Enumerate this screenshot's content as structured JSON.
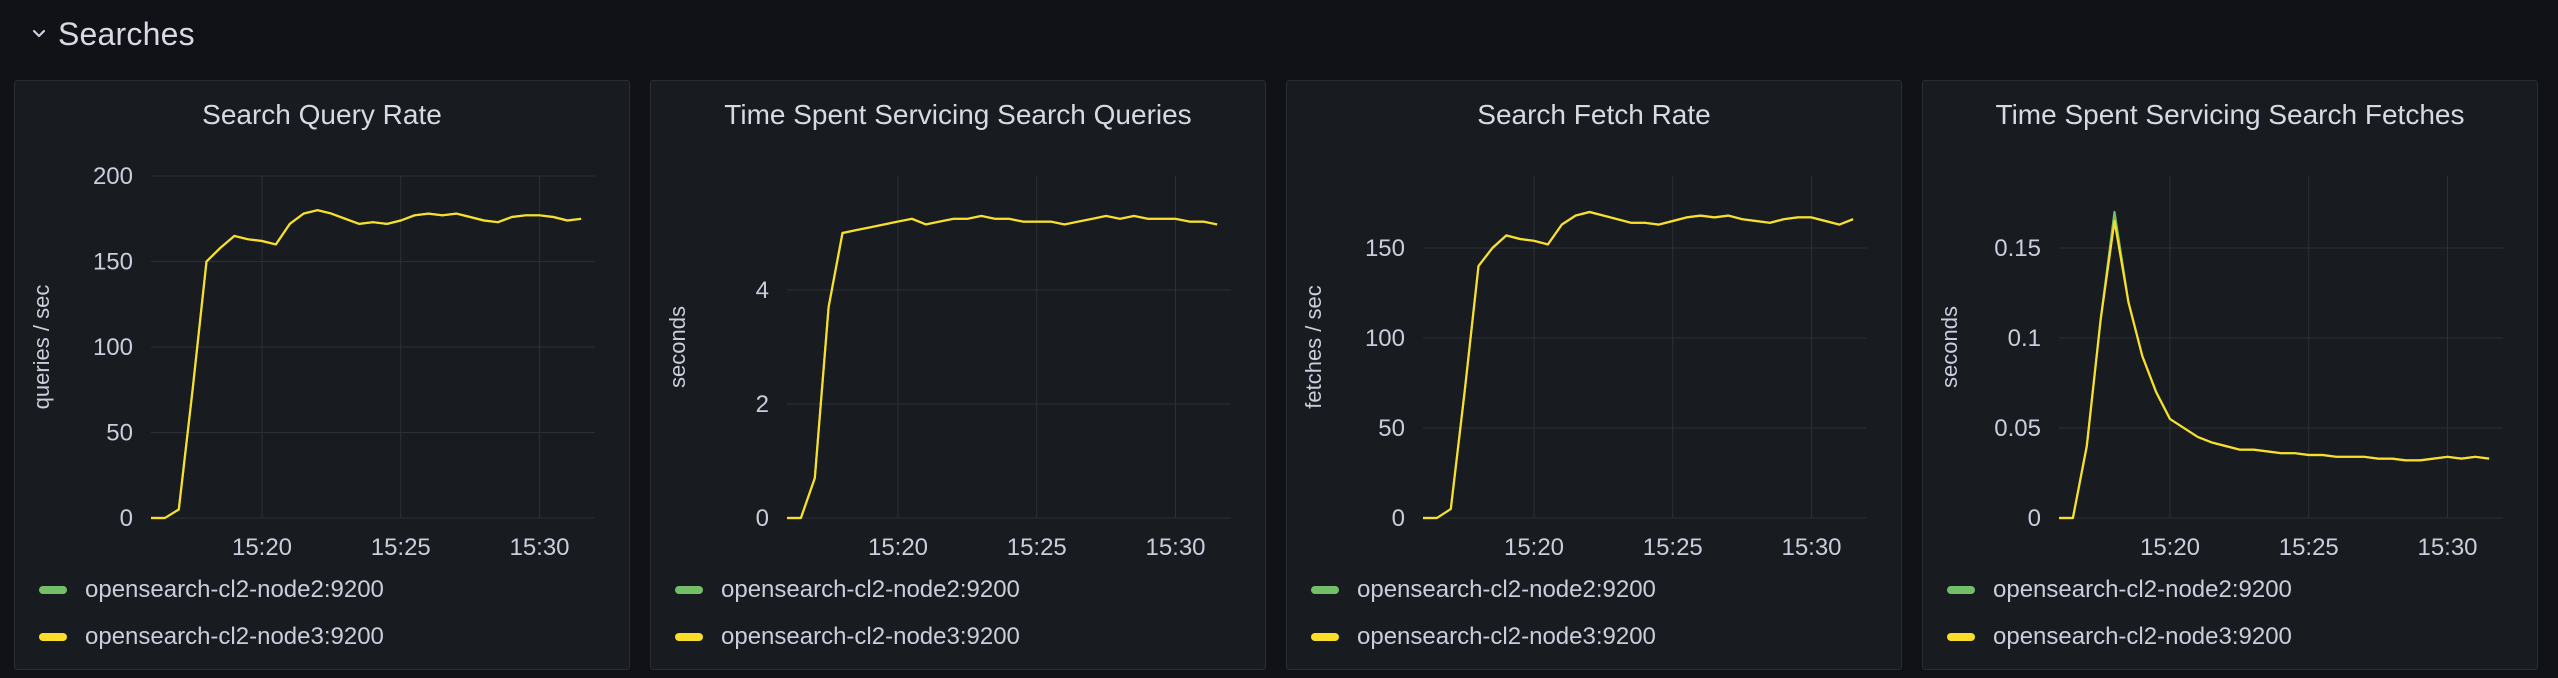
{
  "section": {
    "title": "Searches"
  },
  "colors": {
    "node2": "#73bf69",
    "node3": "#fade2a"
  },
  "panels": [
    {
      "title": "Search Query Rate",
      "legend": [
        "opensearch-cl2-node2:9200",
        "opensearch-cl2-node3:9200"
      ]
    },
    {
      "title": "Time Spent Servicing Search Queries",
      "legend": [
        "opensearch-cl2-node2:9200",
        "opensearch-cl2-node3:9200"
      ]
    },
    {
      "title": "Search Fetch Rate",
      "legend": [
        "opensearch-cl2-node2:9200",
        "opensearch-cl2-node3:9200"
      ]
    },
    {
      "title": "Time Spent Servicing Search Fetches",
      "legend": [
        "opensearch-cl2-node2:9200",
        "opensearch-cl2-node3:9200"
      ]
    }
  ],
  "chart_data": [
    {
      "type": "line",
      "title": "Search Query Rate",
      "ylabel": "queries / sec",
      "xlim": [
        "15:16",
        "15:32"
      ],
      "ylim": [
        0,
        200
      ],
      "x_ticks": [
        "15:20",
        "15:25",
        "15:30"
      ],
      "y_ticks": [
        "0",
        "50",
        "100",
        "150",
        "200"
      ],
      "y_tick_values": [
        0,
        50,
        100,
        150,
        200
      ],
      "x": [
        "15:16",
        "15:16.5",
        "15:17",
        "15:17.5",
        "15:18",
        "15:18.5",
        "15:19",
        "15:19.5",
        "15:20",
        "15:20.5",
        "15:21",
        "15:21.5",
        "15:22",
        "15:22.5",
        "15:23",
        "15:23.5",
        "15:24",
        "15:24.5",
        "15:25",
        "15:25.5",
        "15:26",
        "15:26.5",
        "15:27",
        "15:27.5",
        "15:28",
        "15:28.5",
        "15:29",
        "15:29.5",
        "15:30",
        "15:30.5",
        "15:31",
        "15:31.5"
      ],
      "series": [
        {
          "name": "opensearch-cl2-node2:9200",
          "values": [
            0,
            0,
            5,
            75,
            150,
            158,
            165,
            163,
            162,
            160,
            172,
            178,
            180,
            178,
            175,
            172,
            173,
            172,
            174,
            177,
            178,
            177,
            178,
            176,
            174,
            173,
            176,
            177,
            177,
            176,
            174,
            175
          ]
        },
        {
          "name": "opensearch-cl2-node3:9200",
          "values": [
            0,
            0,
            5,
            75,
            150,
            158,
            165,
            163,
            162,
            160,
            172,
            178,
            180,
            178,
            175,
            172,
            173,
            172,
            174,
            177,
            178,
            177,
            178,
            176,
            174,
            173,
            176,
            177,
            177,
            176,
            174,
            175
          ]
        }
      ],
      "grid": true,
      "legend_position": "bottom"
    },
    {
      "type": "line",
      "title": "Time Spent Servicing Search Queries",
      "ylabel": "seconds",
      "xlim": [
        "15:16",
        "15:32"
      ],
      "ylim": [
        0,
        6
      ],
      "x_ticks": [
        "15:20",
        "15:25",
        "15:30"
      ],
      "y_ticks": [
        "0",
        "2",
        "4"
      ],
      "y_tick_values": [
        0,
        2,
        4
      ],
      "x": [
        "15:16",
        "15:16.5",
        "15:17",
        "15:17.5",
        "15:18",
        "15:18.5",
        "15:19",
        "15:19.5",
        "15:20",
        "15:20.5",
        "15:21",
        "15:21.5",
        "15:22",
        "15:22.5",
        "15:23",
        "15:23.5",
        "15:24",
        "15:24.5",
        "15:25",
        "15:25.5",
        "15:26",
        "15:26.5",
        "15:27",
        "15:27.5",
        "15:28",
        "15:28.5",
        "15:29",
        "15:29.5",
        "15:30",
        "15:30.5",
        "15:31",
        "15:31.5"
      ],
      "series": [
        {
          "name": "opensearch-cl2-node2:9200",
          "values": [
            0,
            0,
            0.7,
            3.7,
            5.0,
            5.05,
            5.1,
            5.15,
            5.2,
            5.25,
            5.15,
            5.2,
            5.25,
            5.25,
            5.3,
            5.25,
            5.25,
            5.2,
            5.2,
            5.2,
            5.15,
            5.2,
            5.25,
            5.3,
            5.25,
            5.3,
            5.25,
            5.25,
            5.25,
            5.2,
            5.2,
            5.15
          ]
        },
        {
          "name": "opensearch-cl2-node3:9200",
          "values": [
            0,
            0,
            0.7,
            3.7,
            5.0,
            5.05,
            5.1,
            5.15,
            5.2,
            5.25,
            5.15,
            5.2,
            5.25,
            5.25,
            5.3,
            5.25,
            5.25,
            5.2,
            5.2,
            5.2,
            5.15,
            5.2,
            5.25,
            5.3,
            5.25,
            5.3,
            5.25,
            5.25,
            5.25,
            5.2,
            5.2,
            5.15
          ]
        }
      ],
      "grid": true,
      "legend_position": "bottom"
    },
    {
      "type": "line",
      "title": "Search Fetch Rate",
      "ylabel": "fetches / sec",
      "xlim": [
        "15:16",
        "15:32"
      ],
      "ylim": [
        0,
        190
      ],
      "x_ticks": [
        "15:20",
        "15:25",
        "15:30"
      ],
      "y_ticks": [
        "0",
        "50",
        "100",
        "150"
      ],
      "y_tick_values": [
        0,
        50,
        100,
        150
      ],
      "x": [
        "15:16",
        "15:16.5",
        "15:17",
        "15:17.5",
        "15:18",
        "15:18.5",
        "15:19",
        "15:19.5",
        "15:20",
        "15:20.5",
        "15:21",
        "15:21.5",
        "15:22",
        "15:22.5",
        "15:23",
        "15:23.5",
        "15:24",
        "15:24.5",
        "15:25",
        "15:25.5",
        "15:26",
        "15:26.5",
        "15:27",
        "15:27.5",
        "15:28",
        "15:28.5",
        "15:29",
        "15:29.5",
        "15:30",
        "15:30.5",
        "15:31",
        "15:31.5"
      ],
      "series": [
        {
          "name": "opensearch-cl2-node2:9200",
          "values": [
            0,
            0,
            5,
            70,
            140,
            150,
            157,
            155,
            154,
            152,
            163,
            168,
            170,
            168,
            166,
            164,
            164,
            163,
            165,
            167,
            168,
            167,
            168,
            166,
            165,
            164,
            166,
            167,
            167,
            165,
            163,
            166
          ]
        },
        {
          "name": "opensearch-cl2-node3:9200",
          "values": [
            0,
            0,
            5,
            70,
            140,
            150,
            157,
            155,
            154,
            152,
            163,
            168,
            170,
            168,
            166,
            164,
            164,
            163,
            165,
            167,
            168,
            167,
            168,
            166,
            165,
            164,
            166,
            167,
            167,
            165,
            163,
            166
          ]
        }
      ],
      "grid": true,
      "legend_position": "bottom"
    },
    {
      "type": "line",
      "title": "Time Spent Servicing Search Fetches",
      "ylabel": "seconds",
      "xlim": [
        "15:16",
        "15:32"
      ],
      "ylim": [
        0,
        0.19
      ],
      "x_ticks": [
        "15:20",
        "15:25",
        "15:30"
      ],
      "y_ticks": [
        "0",
        "0.05",
        "0.1",
        "0.15"
      ],
      "y_tick_values": [
        0,
        0.05,
        0.1,
        0.15
      ],
      "x": [
        "15:16",
        "15:16.5",
        "15:17",
        "15:17.5",
        "15:18",
        "15:18.5",
        "15:19",
        "15:19.5",
        "15:20",
        "15:20.5",
        "15:21",
        "15:21.5",
        "15:22",
        "15:22.5",
        "15:23",
        "15:23.5",
        "15:24",
        "15:24.5",
        "15:25",
        "15:25.5",
        "15:26",
        "15:26.5",
        "15:27",
        "15:27.5",
        "15:28",
        "15:28.5",
        "15:29",
        "15:29.5",
        "15:30",
        "15:30.5",
        "15:31",
        "15:31.5"
      ],
      "series": [
        {
          "name": "opensearch-cl2-node2:9200",
          "values": [
            0,
            0,
            0.04,
            0.11,
            0.17,
            0.12,
            0.09,
            0.07,
            0.055,
            0.05,
            0.045,
            0.042,
            0.04,
            0.038,
            0.038,
            0.037,
            0.036,
            0.036,
            0.035,
            0.035,
            0.034,
            0.034,
            0.034,
            0.033,
            0.033,
            0.032,
            0.032,
            0.033,
            0.034,
            0.033,
            0.034,
            0.033
          ]
        },
        {
          "name": "opensearch-cl2-node3:9200",
          "values": [
            0,
            0,
            0.04,
            0.11,
            0.165,
            0.12,
            0.09,
            0.07,
            0.055,
            0.05,
            0.045,
            0.042,
            0.04,
            0.038,
            0.038,
            0.037,
            0.036,
            0.036,
            0.035,
            0.035,
            0.034,
            0.034,
            0.034,
            0.033,
            0.033,
            0.032,
            0.032,
            0.033,
            0.034,
            0.033,
            0.034,
            0.033
          ]
        }
      ],
      "grid": true,
      "legend_position": "bottom"
    }
  ]
}
